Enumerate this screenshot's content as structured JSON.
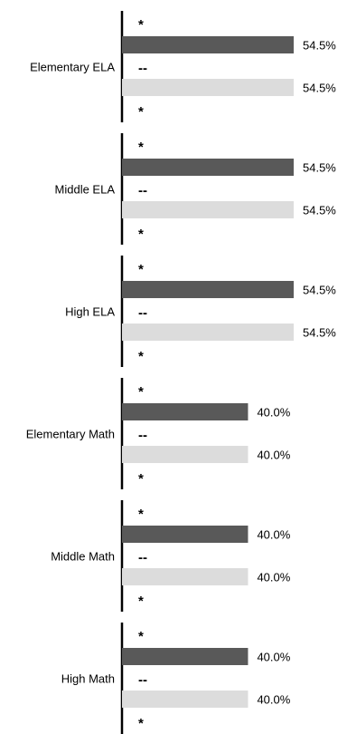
{
  "chart_data": {
    "type": "bar",
    "orientation": "horizontal",
    "categories": [
      "Elementary ELA",
      "Middle ELA",
      "High ELA",
      "Elementary Math",
      "Middle Math",
      "High Math"
    ],
    "series": [
      {
        "values": [
          54.5,
          54.5,
          54.5,
          40.0,
          40.0,
          40.0
        ],
        "color": "#595959"
      },
      {
        "values": [
          54.5,
          54.5,
          54.5,
          40.0,
          40.0,
          40.0
        ],
        "color": "#dcdcdc"
      }
    ],
    "value_labels": [
      [
        "54.5%",
        "54.5%",
        "54.5%",
        "40.0%",
        "40.0%",
        "40.0%"
      ],
      [
        "54.5%",
        "54.5%",
        "54.5%",
        "40.0%",
        "40.0%",
        "40.0%"
      ]
    ],
    "row_markers": [
      "*",
      "--",
      "*"
    ],
    "xlim": [
      0,
      100
    ],
    "grid": false,
    "legend": "none"
  }
}
